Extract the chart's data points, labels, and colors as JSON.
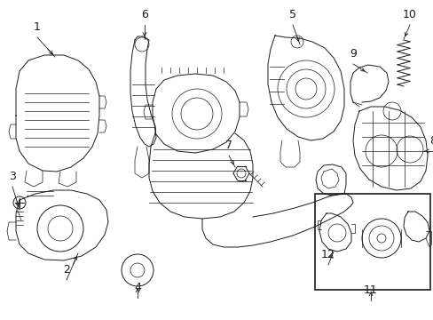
{
  "bg_color": "#ffffff",
  "fig_width": 4.89,
  "fig_height": 3.6,
  "dpi": 100,
  "image_data": ""
}
